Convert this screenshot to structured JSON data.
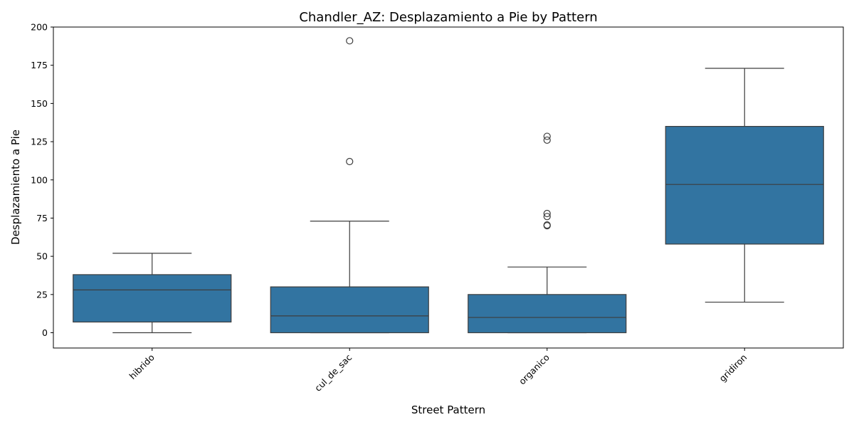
{
  "chart_data": {
    "type": "box",
    "title": "Chandler_AZ: Desplazamiento a Pie by Pattern",
    "xlabel": "Street Pattern",
    "ylabel": "Desplazamiento a Pie",
    "ylim": [
      -10,
      200
    ],
    "yticks": [
      0,
      25,
      50,
      75,
      100,
      125,
      150,
      175,
      200
    ],
    "categories": [
      "hibrido",
      "cul_de_sac",
      "organico",
      "gridiron"
    ],
    "box_color": "#3274a1",
    "line_color": "#3d3d3d",
    "grid": false,
    "legend": "none",
    "boxes": [
      {
        "category": "hibrido",
        "whisker_low": 0,
        "q1": 7,
        "median": 28,
        "q3": 38,
        "whisker_high": 52,
        "outliers": []
      },
      {
        "category": "cul_de_sac",
        "whisker_low": 0,
        "q1": 0,
        "median": 11,
        "q3": 30,
        "whisker_high": 73,
        "outliers": [
          112,
          191
        ]
      },
      {
        "category": "organico",
        "whisker_low": 0,
        "q1": 0,
        "median": 10,
        "q3": 25,
        "whisker_high": 43,
        "outliers": [
          70,
          70.5,
          76,
          78,
          126,
          128.5
        ]
      },
      {
        "category": "gridiron",
        "whisker_low": 20,
        "q1": 58,
        "median": 97,
        "q3": 135,
        "whisker_high": 173,
        "outliers": []
      }
    ]
  }
}
